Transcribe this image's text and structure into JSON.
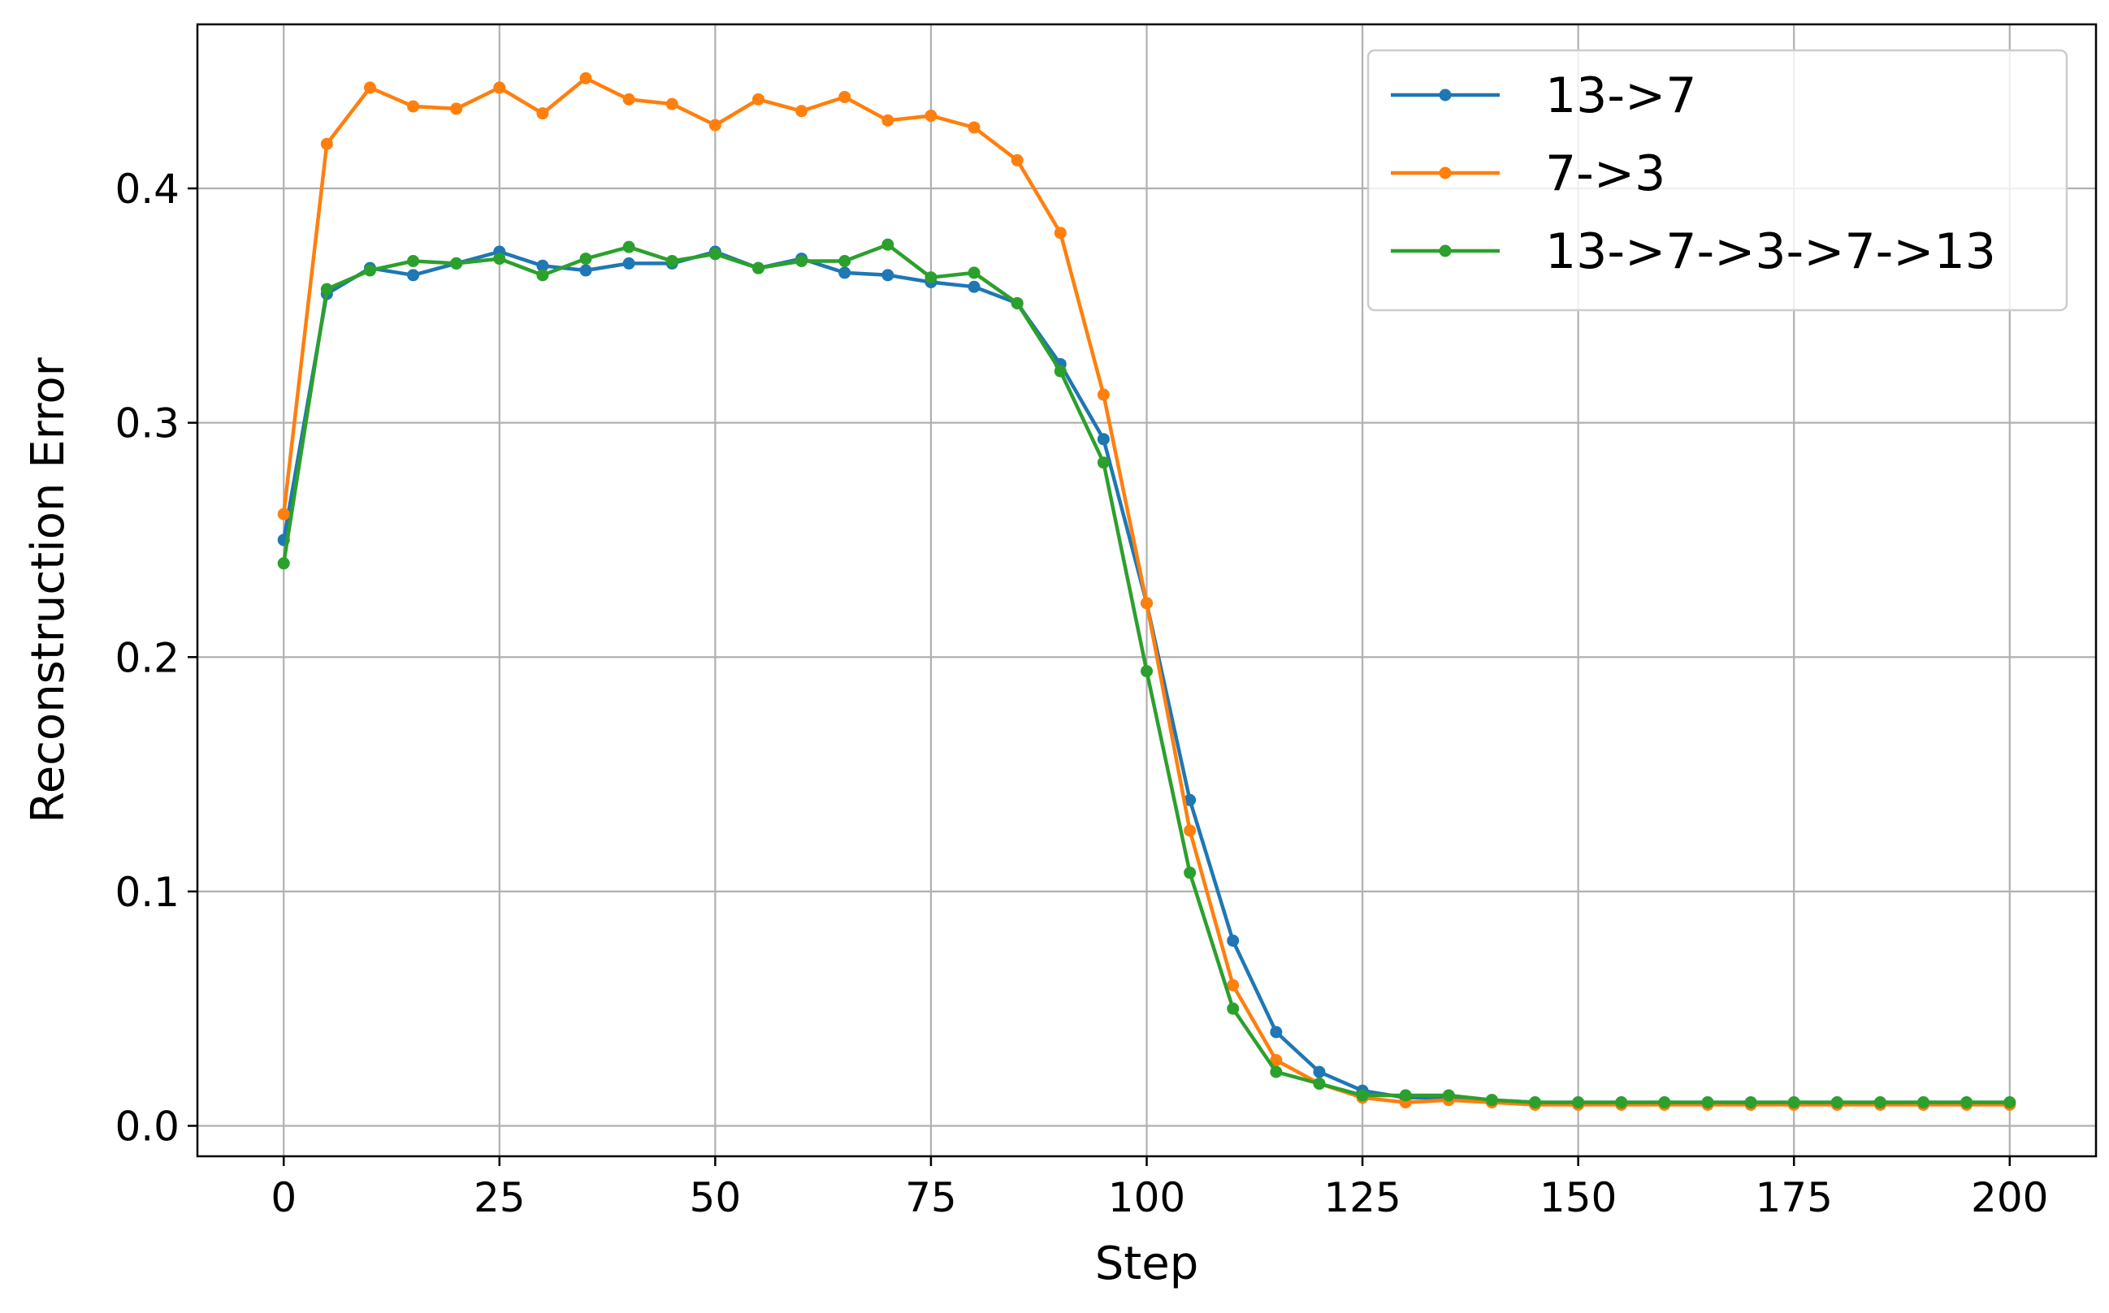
{
  "chart_data": {
    "type": "line",
    "xlabel": "Step",
    "ylabel": "Reconstruction Error",
    "xlim": [
      -10,
      210
    ],
    "ylim": [
      -0.013,
      0.47
    ],
    "xticks": [
      0,
      25,
      50,
      75,
      100,
      125,
      150,
      175,
      200
    ],
    "xtick_labels": [
      "0",
      "25",
      "50",
      "75",
      "100",
      "125",
      "150",
      "175",
      "200"
    ],
    "yticks": [
      0.0,
      0.1,
      0.2,
      0.3,
      0.4
    ],
    "ytick_labels": [
      "0.0",
      "0.1",
      "0.2",
      "0.3",
      "0.4"
    ],
    "grid": true,
    "legend_position": "top-right",
    "x": [
      0,
      5,
      10,
      15,
      20,
      25,
      30,
      35,
      40,
      45,
      50,
      55,
      60,
      65,
      70,
      75,
      80,
      85,
      90,
      95,
      100,
      105,
      110,
      115,
      120,
      125,
      130,
      135,
      140,
      145,
      150,
      155,
      160,
      165,
      170,
      175,
      180,
      185,
      190,
      195,
      200
    ],
    "series": [
      {
        "name": "13->7",
        "color": "#1f77b4",
        "values": [
          0.25,
          0.355,
          0.366,
          0.363,
          0.368,
          0.373,
          0.367,
          0.365,
          0.368,
          0.368,
          0.373,
          0.366,
          0.37,
          0.364,
          0.363,
          0.36,
          0.358,
          0.351,
          0.325,
          0.293,
          0.223,
          0.139,
          0.079,
          0.04,
          0.023,
          0.015,
          0.012,
          0.012,
          0.011,
          0.01,
          0.01,
          0.01,
          0.01,
          0.01,
          0.01,
          0.01,
          0.01,
          0.01,
          0.01,
          0.01,
          0.01
        ]
      },
      {
        "name": "7->3",
        "color": "#ff7f0e",
        "values": [
          0.261,
          0.419,
          0.443,
          0.435,
          0.434,
          0.443,
          0.432,
          0.447,
          0.438,
          0.436,
          0.427,
          0.438,
          0.433,
          0.439,
          0.429,
          0.431,
          0.426,
          0.412,
          0.381,
          0.312,
          0.223,
          0.126,
          0.06,
          0.028,
          0.018,
          0.012,
          0.01,
          0.011,
          0.01,
          0.009,
          0.009,
          0.009,
          0.009,
          0.009,
          0.009,
          0.009,
          0.009,
          0.009,
          0.009,
          0.009,
          0.009
        ]
      },
      {
        "name": "13->7->3->7->13",
        "color": "#2ca02c",
        "values": [
          0.24,
          0.357,
          0.365,
          0.369,
          0.368,
          0.37,
          0.363,
          0.37,
          0.375,
          0.369,
          0.372,
          0.366,
          0.369,
          0.369,
          0.376,
          0.362,
          0.364,
          0.351,
          0.322,
          0.283,
          0.194,
          0.108,
          0.05,
          0.023,
          0.018,
          0.013,
          0.013,
          0.013,
          0.011,
          0.01,
          0.01,
          0.01,
          0.01,
          0.01,
          0.01,
          0.01,
          0.01,
          0.01,
          0.01,
          0.01,
          0.01
        ]
      }
    ]
  }
}
